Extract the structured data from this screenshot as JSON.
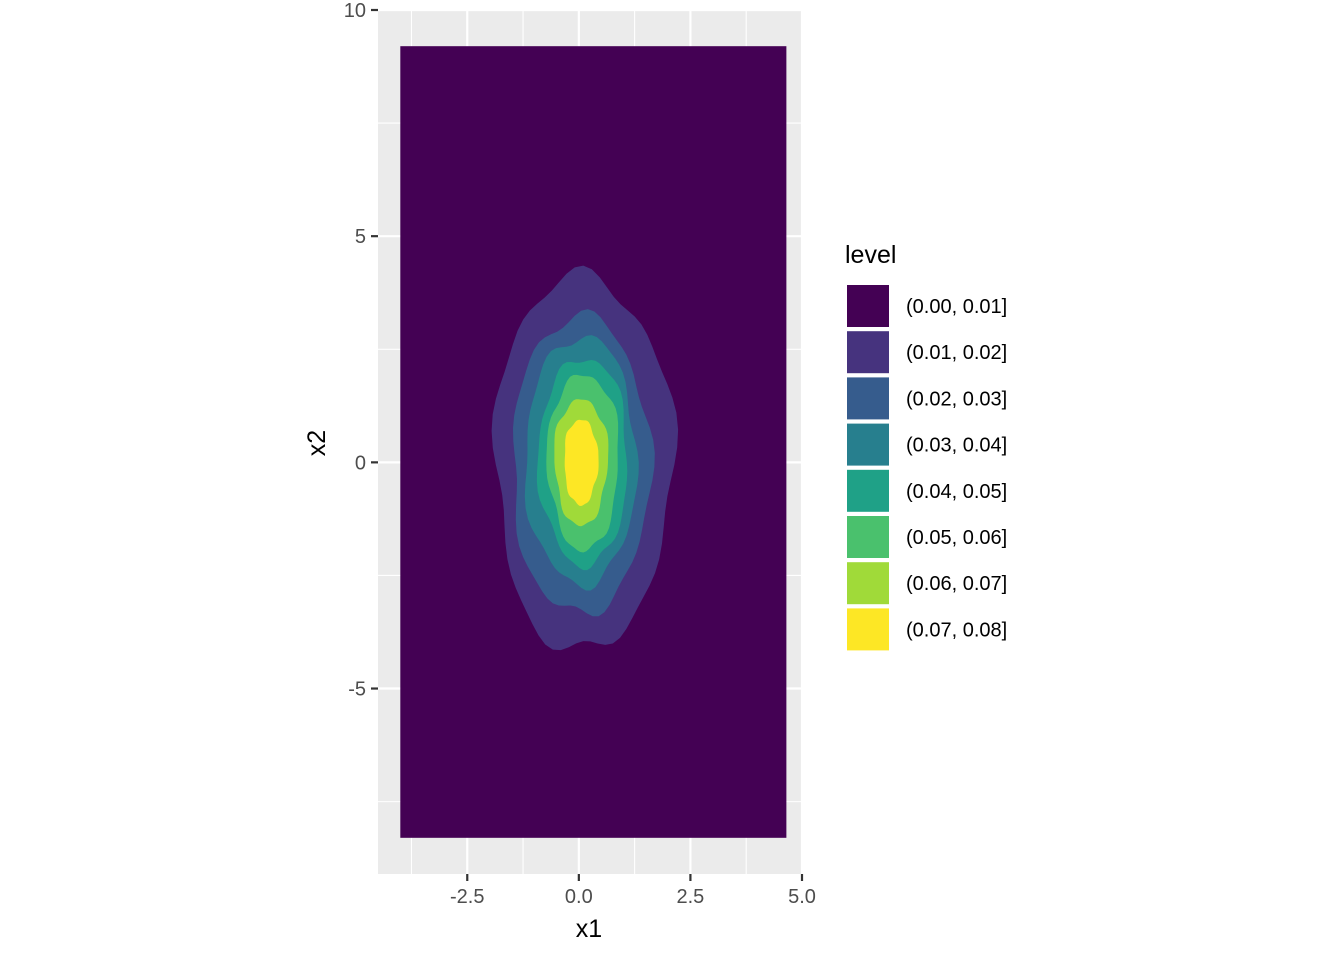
{
  "chart_data": {
    "type": "contour",
    "title": "",
    "xlabel": "x1",
    "ylabel": "x2",
    "xlim": [
      -4.5,
      5.0
    ],
    "ylim": [
      -9.1,
      10.0
    ],
    "x_ticks": [
      -2.5,
      0.0,
      2.5,
      5.0
    ],
    "x_tick_labels": [
      "-2.5",
      "0.0",
      "2.5",
      "5.0"
    ],
    "y_ticks": [
      -5,
      0,
      5,
      10
    ],
    "y_tick_labels": [
      "-5",
      "0",
      "5",
      "10"
    ],
    "data_extent": {
      "x": [
        -4.0,
        4.65
      ],
      "y": [
        -8.3,
        9.2
      ]
    },
    "grid": true,
    "legend": {
      "title": "level",
      "placement": "right",
      "entries": [
        {
          "label": "(0.00, 0.01]",
          "color": "#440154"
        },
        {
          "label": "(0.01, 0.02]",
          "color": "#46337E"
        },
        {
          "label": "(0.02, 0.03]",
          "color": "#365C8D"
        },
        {
          "label": "(0.03, 0.04]",
          "color": "#277F8E"
        },
        {
          "label": "(0.04, 0.05]",
          "color": "#1FA187"
        },
        {
          "label": "(0.05, 0.06]",
          "color": "#4AC16D"
        },
        {
          "label": "(0.06, 0.07]",
          "color": "#A0DA39"
        },
        {
          "label": "(0.07, 0.08]",
          "color": "#FDE725"
        }
      ]
    },
    "contour_bands": [
      {
        "level": "(0.01, 0.02]",
        "center": [
          0.1,
          -0.05
        ],
        "half_width_x1": 2.0,
        "half_height_x2": 4.15
      },
      {
        "level": "(0.02, 0.03]",
        "center": [
          0.05,
          -0.1
        ],
        "half_width_x1": 1.55,
        "half_height_x2": 3.3
      },
      {
        "level": "(0.03, 0.04]",
        "center": [
          0.05,
          0.0
        ],
        "half_width_x1": 1.25,
        "half_height_x2": 2.75
      },
      {
        "level": "(0.04, 0.05]",
        "center": [
          0.1,
          0.0
        ],
        "half_width_x1": 1.0,
        "half_height_x2": 2.3
      },
      {
        "level": "(0.05, 0.06]",
        "center": [
          0.1,
          0.0
        ],
        "half_width_x1": 0.8,
        "half_height_x2": 1.95
      },
      {
        "level": "(0.06, 0.07]",
        "center": [
          0.05,
          0.0
        ],
        "half_width_x1": 0.6,
        "half_height_x2": 1.4
      },
      {
        "level": "(0.07, 0.08]",
        "center": [
          0.05,
          0.0
        ],
        "half_width_x1": 0.38,
        "half_height_x2": 0.95
      }
    ]
  }
}
